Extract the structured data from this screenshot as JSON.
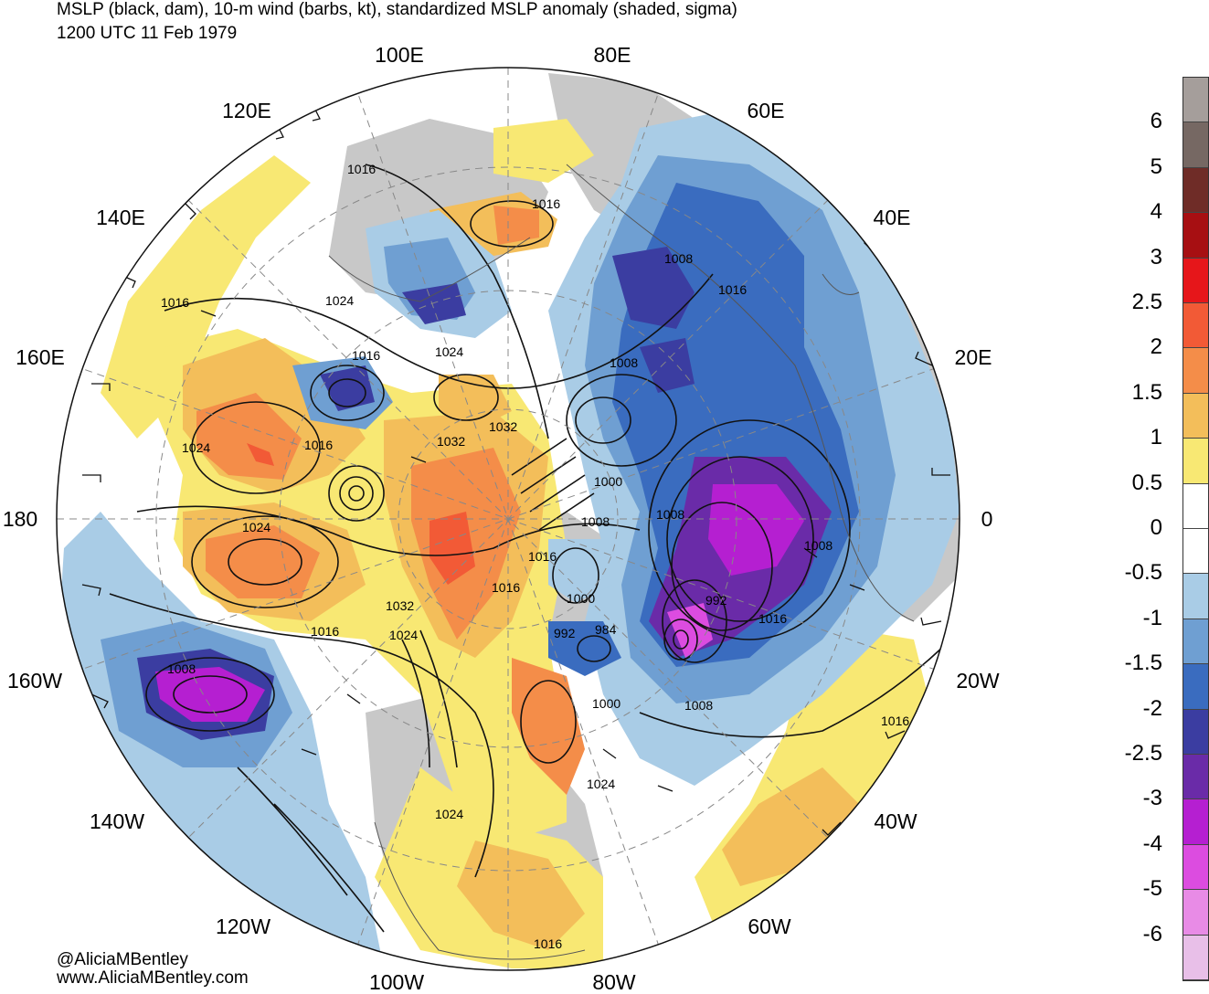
{
  "title": {
    "line1": "MSLP (black, dam), 10-m wind (barbs, kt), standardized MSLP anomaly (shaded, sigma)",
    "line2": "1200 UTC 11 Feb 1979"
  },
  "longitude_labels": [
    "100E",
    "80E",
    "120E",
    "60E",
    "140E",
    "40E",
    "160E",
    "20E",
    "180",
    "0",
    "160W",
    "20W",
    "140W",
    "40W",
    "120W",
    "60W",
    "100W",
    "80W"
  ],
  "isobar_labels": [
    "1016",
    "1016",
    "1024",
    "1016",
    "1024",
    "1008",
    "1016",
    "1016",
    "1008",
    "1024",
    "1016",
    "1032",
    "1032",
    "1000",
    "1008",
    "1008",
    "1024",
    "1008",
    "1016",
    "992",
    "1032",
    "1016",
    "992",
    "984",
    "1000",
    "1024",
    "1008",
    "1016",
    "1000",
    "1008",
    "1016",
    "1024",
    "1024",
    "1016",
    "1016"
  ],
  "colorbar": {
    "labels": [
      "6",
      "5",
      "4",
      "3",
      "2.5",
      "2",
      "1.5",
      "1",
      "0.5",
      "0",
      "-0.5",
      "-1",
      "-1.5",
      "-2",
      "-2.5",
      "-3",
      "-4",
      "-5",
      "-6"
    ],
    "colors": [
      "#a59e9b",
      "#766863",
      "#6f2c27",
      "#a70f12",
      "#e6161a",
      "#f25a36",
      "#f48d49",
      "#f3be5a",
      "#f8e873",
      "#ffffff",
      "#ffffff",
      "#a9cce6",
      "#6f9fd2",
      "#3a6cbf",
      "#3b3da1",
      "#6a2ba8",
      "#b51fd1",
      "#dc4ce0",
      "#e88be6",
      "#e8bfe8"
    ]
  },
  "credits": {
    "handle": "@AliciaMBentley",
    "website": "www.AliciaMBentley.com"
  }
}
